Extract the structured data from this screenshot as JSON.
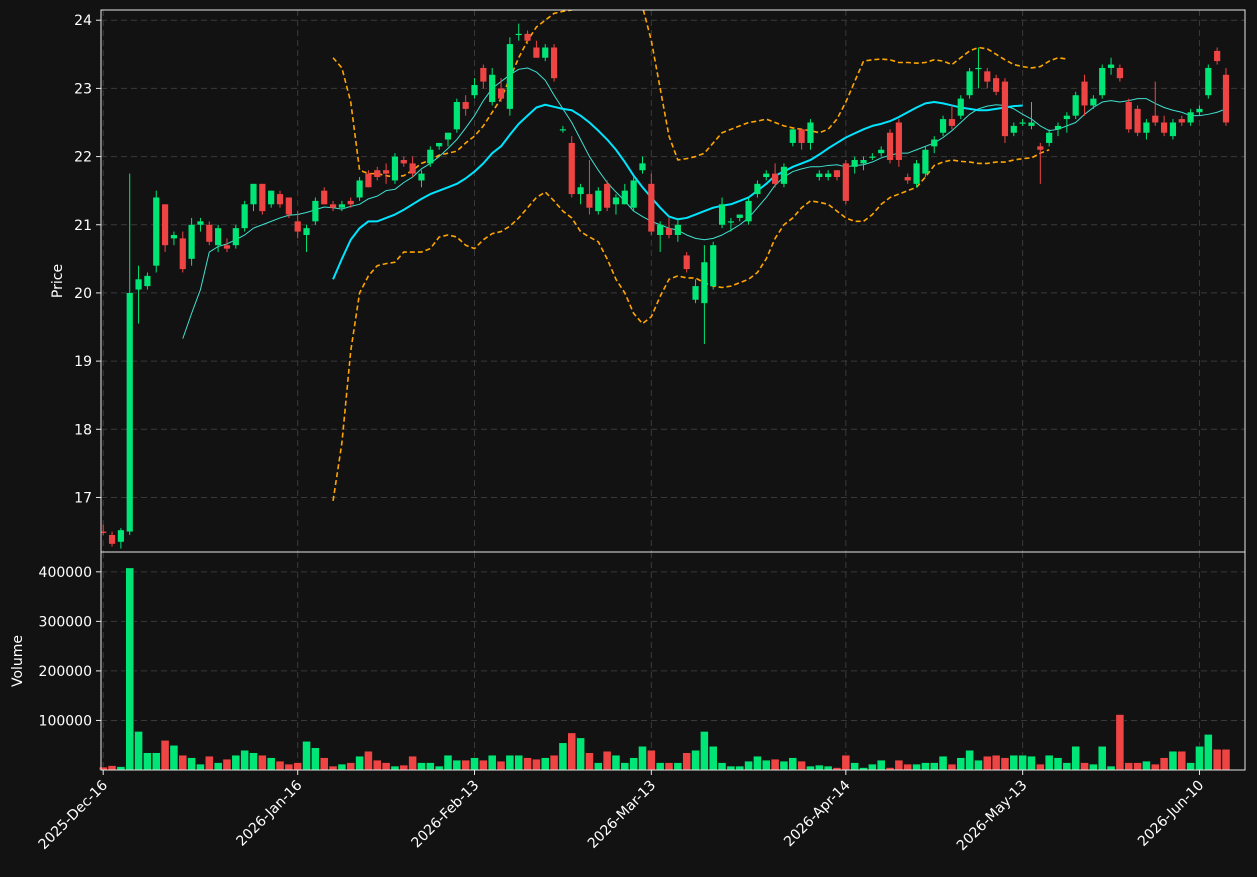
{
  "chart_data": {
    "type": "candlestick",
    "title": "",
    "colors": {
      "background": "#121212",
      "up": "#00e676",
      "down": "#ef4444",
      "ma_fast": "#40e0d0",
      "ma_slow": "#00e5ff",
      "bands": "#ffa500",
      "grid": "#3a3a3a",
      "axis": "#e6e6e6",
      "text": "#ffffff"
    },
    "price_panel": {
      "ylabel": "Price",
      "ylim": [
        16.2,
        24.15
      ],
      "yticks": [
        17,
        18,
        19,
        20,
        21,
        22,
        23,
        24
      ]
    },
    "volume_panel": {
      "ylabel": "Volume",
      "ylim": [
        0,
        440000
      ],
      "yticks": [
        100000,
        200000,
        300000,
        400000
      ]
    },
    "x_axis": {
      "tick_labels": [
        "2025-Dec-16",
        "2026-Jan-16",
        "2026-Feb-13",
        "2026-Mar-13",
        "2026-Apr-14",
        "2026-May-13",
        "2026-Jun-10"
      ],
      "tick_index": [
        0,
        22,
        42,
        62,
        84,
        104,
        124
      ],
      "num_sessions": 130
    },
    "candles": [
      [
        16.5,
        16.6,
        16.45,
        16.48,
        6000
      ],
      [
        16.45,
        16.5,
        16.28,
        16.32,
        9000
      ],
      [
        16.35,
        16.55,
        16.25,
        16.52,
        7000
      ],
      [
        16.5,
        21.75,
        16.45,
        20.0,
        408000
      ],
      [
        20.05,
        20.4,
        19.55,
        20.2,
        78000
      ],
      [
        20.1,
        20.3,
        20.05,
        20.25,
        35000
      ],
      [
        20.4,
        21.5,
        20.3,
        21.4,
        35000
      ],
      [
        21.3,
        21.3,
        20.6,
        20.7,
        60000
      ],
      [
        20.8,
        20.9,
        20.7,
        20.85,
        50000
      ],
      [
        20.8,
        20.9,
        20.3,
        20.35,
        30000
      ],
      [
        20.5,
        21.1,
        20.4,
        21.0,
        25000
      ],
      [
        21.0,
        21.1,
        20.9,
        21.05,
        12000
      ],
      [
        21.0,
        21.05,
        20.7,
        20.75,
        28000
      ],
      [
        20.7,
        21.0,
        20.6,
        20.95,
        15000
      ],
      [
        20.7,
        20.8,
        20.6,
        20.65,
        22000
      ],
      [
        20.7,
        21.0,
        20.65,
        20.95,
        30000
      ],
      [
        20.95,
        21.35,
        20.9,
        21.3,
        40000
      ],
      [
        21.3,
        21.6,
        21.2,
        21.6,
        35000
      ],
      [
        21.6,
        21.6,
        21.15,
        21.2,
        30000
      ],
      [
        21.3,
        21.5,
        21.25,
        21.5,
        25000
      ],
      [
        21.45,
        21.5,
        21.25,
        21.3,
        18000
      ],
      [
        21.4,
        21.4,
        21.1,
        21.15,
        12000
      ],
      [
        21.05,
        21.2,
        20.8,
        20.9,
        15000
      ],
      [
        20.85,
        21.0,
        20.6,
        20.95,
        58000
      ],
      [
        21.05,
        21.4,
        21.0,
        21.35,
        45000
      ],
      [
        21.5,
        21.55,
        21.3,
        21.3,
        25000
      ],
      [
        21.3,
        21.35,
        21.2,
        21.25,
        8000
      ],
      [
        21.25,
        21.35,
        21.2,
        21.3,
        12000
      ],
      [
        21.35,
        21.4,
        21.25,
        21.3,
        15000
      ],
      [
        21.4,
        21.7,
        21.35,
        21.65,
        28000
      ],
      [
        21.75,
        21.8,
        21.55,
        21.55,
        38000
      ],
      [
        21.8,
        21.85,
        21.65,
        21.7,
        20000
      ],
      [
        21.8,
        21.9,
        21.6,
        21.75,
        15000
      ],
      [
        21.65,
        22.05,
        21.6,
        22.0,
        8000
      ],
      [
        21.95,
        22.0,
        21.85,
        21.9,
        10000
      ],
      [
        21.9,
        22.0,
        21.7,
        21.75,
        28000
      ],
      [
        21.65,
        21.8,
        21.55,
        21.75,
        15000
      ],
      [
        21.9,
        22.15,
        21.85,
        22.1,
        15000
      ],
      [
        22.15,
        22.2,
        22.1,
        22.2,
        8000
      ],
      [
        22.25,
        22.35,
        22.15,
        22.35,
        30000
      ],
      [
        22.4,
        22.85,
        22.35,
        22.8,
        20000
      ],
      [
        22.8,
        22.9,
        22.6,
        22.7,
        20000
      ],
      [
        22.9,
        23.15,
        22.85,
        23.05,
        25000
      ],
      [
        23.3,
        23.35,
        23.0,
        23.1,
        20000
      ],
      [
        22.8,
        23.3,
        22.75,
        23.2,
        30000
      ],
      [
        23.0,
        23.15,
        22.8,
        22.85,
        18000
      ],
      [
        22.7,
        23.75,
        22.6,
        23.65,
        30000
      ],
      [
        23.8,
        23.95,
        23.7,
        23.8,
        30000
      ],
      [
        23.8,
        23.85,
        23.65,
        23.7,
        25000
      ],
      [
        23.6,
        23.7,
        23.45,
        23.45,
        22000
      ],
      [
        23.45,
        23.65,
        23.4,
        23.6,
        25000
      ],
      [
        23.6,
        23.65,
        23.1,
        23.15,
        30000
      ],
      [
        22.4,
        22.45,
        22.35,
        22.4,
        55000
      ],
      [
        22.2,
        22.3,
        21.4,
        21.45,
        75000
      ],
      [
        21.45,
        21.6,
        21.3,
        21.55,
        65000
      ],
      [
        21.45,
        21.95,
        21.15,
        21.25,
        35000
      ],
      [
        21.2,
        21.55,
        21.15,
        21.5,
        15000
      ],
      [
        21.6,
        21.65,
        21.2,
        21.25,
        38000
      ],
      [
        21.3,
        21.45,
        21.15,
        21.4,
        30000
      ],
      [
        21.3,
        21.6,
        21.3,
        21.5,
        15000
      ],
      [
        21.25,
        21.7,
        21.2,
        21.65,
        25000
      ],
      [
        21.8,
        22.0,
        21.75,
        21.9,
        48000
      ],
      [
        21.6,
        21.75,
        20.85,
        20.9,
        40000
      ],
      [
        20.85,
        21.05,
        20.6,
        21.0,
        15000
      ],
      [
        20.95,
        21.1,
        20.8,
        20.85,
        15000
      ],
      [
        20.85,
        21.1,
        20.75,
        21.0,
        15000
      ],
      [
        20.55,
        20.6,
        20.3,
        20.35,
        35000
      ],
      [
        19.9,
        20.2,
        19.85,
        20.1,
        40000
      ],
      [
        19.85,
        20.7,
        19.25,
        20.45,
        78000
      ],
      [
        20.1,
        20.75,
        20.05,
        20.7,
        48000
      ],
      [
        21.0,
        21.4,
        20.95,
        21.3,
        15000
      ],
      [
        21.05,
        21.1,
        20.9,
        21.05,
        8000
      ],
      [
        21.1,
        21.15,
        21.05,
        21.15,
        8000
      ],
      [
        21.05,
        21.4,
        21.0,
        21.35,
        18000
      ],
      [
        21.45,
        21.65,
        21.4,
        21.6,
        28000
      ],
      [
        21.7,
        21.8,
        21.65,
        21.75,
        20000
      ],
      [
        21.75,
        21.9,
        21.55,
        21.6,
        22000
      ],
      [
        21.6,
        21.9,
        21.55,
        21.85,
        18000
      ],
      [
        22.2,
        22.4,
        22.15,
        22.4,
        25000
      ],
      [
        22.4,
        22.4,
        22.1,
        22.2,
        18000
      ],
      [
        22.2,
        22.55,
        22.1,
        22.5,
        8000
      ],
      [
        21.7,
        21.8,
        21.65,
        21.75,
        10000
      ],
      [
        21.7,
        21.8,
        21.65,
        21.75,
        8000
      ],
      [
        21.8,
        21.8,
        21.65,
        21.7,
        5000
      ],
      [
        21.9,
        21.95,
        21.3,
        21.35,
        30000
      ],
      [
        21.85,
        22.0,
        21.75,
        21.95,
        15000
      ],
      [
        21.9,
        22.0,
        21.8,
        21.95,
        5000
      ],
      [
        22.0,
        22.05,
        21.95,
        22.0,
        12000
      ],
      [
        22.05,
        22.15,
        22.0,
        22.1,
        20000
      ],
      [
        22.35,
        22.4,
        21.9,
        21.95,
        5000
      ],
      [
        22.5,
        22.55,
        21.85,
        21.95,
        20000
      ],
      [
        21.7,
        21.75,
        21.6,
        21.65,
        12000
      ],
      [
        21.6,
        21.95,
        21.55,
        21.9,
        12000
      ],
      [
        21.75,
        22.15,
        21.7,
        22.1,
        15000
      ],
      [
        22.15,
        22.3,
        22.05,
        22.25,
        15000
      ],
      [
        22.35,
        22.6,
        22.3,
        22.55,
        28000
      ],
      [
        22.55,
        22.75,
        22.4,
        22.45,
        12000
      ],
      [
        22.6,
        22.9,
        22.55,
        22.85,
        25000
      ],
      [
        22.9,
        23.3,
        22.85,
        23.25,
        40000
      ],
      [
        23.3,
        23.6,
        23.0,
        23.3,
        20000
      ],
      [
        23.25,
        23.3,
        23.0,
        23.1,
        28000
      ],
      [
        23.15,
        23.2,
        22.9,
        22.95,
        30000
      ],
      [
        23.1,
        23.15,
        22.2,
        22.3,
        25000
      ],
      [
        22.35,
        22.5,
        22.3,
        22.45,
        30000
      ],
      [
        22.5,
        22.55,
        22.45,
        22.5,
        30000
      ],
      [
        22.45,
        22.8,
        22.4,
        22.5,
        28000
      ],
      [
        22.15,
        22.2,
        21.6,
        22.1,
        12000
      ],
      [
        22.2,
        22.4,
        22.15,
        22.35,
        30000
      ],
      [
        22.4,
        22.5,
        22.3,
        22.45,
        25000
      ],
      [
        22.55,
        22.65,
        22.35,
        22.6,
        15000
      ],
      [
        22.6,
        22.95,
        22.55,
        22.9,
        48000
      ],
      [
        23.1,
        23.2,
        22.6,
        22.75,
        15000
      ],
      [
        22.75,
        22.9,
        22.7,
        22.85,
        12000
      ],
      [
        22.9,
        23.35,
        22.85,
        23.3,
        48000
      ],
      [
        23.3,
        23.45,
        23.2,
        23.35,
        8000
      ],
      [
        23.3,
        23.35,
        23.1,
        23.15,
        112000
      ],
      [
        22.8,
        22.85,
        22.35,
        22.4,
        15000
      ],
      [
        22.7,
        22.75,
        22.3,
        22.35,
        15000
      ],
      [
        22.35,
        22.55,
        22.25,
        22.5,
        18000
      ],
      [
        22.6,
        23.1,
        22.45,
        22.5,
        12000
      ],
      [
        22.5,
        22.6,
        22.3,
        22.35,
        25000
      ],
      [
        22.3,
        22.55,
        22.25,
        22.5,
        38000
      ],
      [
        22.55,
        22.6,
        22.45,
        22.5,
        38000
      ],
      [
        22.5,
        22.7,
        22.45,
        22.65,
        15000
      ],
      [
        22.65,
        22.75,
        22.6,
        22.7,
        48000
      ],
      [
        22.9,
        23.35,
        22.85,
        23.3,
        72000
      ],
      [
        23.55,
        23.6,
        23.35,
        23.4,
        42000
      ],
      [
        23.2,
        23.3,
        22.45,
        22.5,
        42000
      ]
    ],
    "series": [
      {
        "name": "",
        "style": "thin-line",
        "color": "#40e0d0",
        "start_index": 9,
        "values": [
          19.33,
          19.7,
          20.05,
          20.6,
          20.68,
          20.72,
          20.78,
          20.85,
          20.95,
          21.0,
          21.05,
          21.1,
          21.14,
          21.15,
          21.18,
          21.22,
          21.26,
          21.25,
          21.23,
          21.27,
          21.3,
          21.38,
          21.42,
          21.5,
          21.52,
          21.62,
          21.7,
          21.82,
          21.9,
          22.0,
          22.12,
          22.25,
          22.42,
          22.6,
          22.82,
          23.0,
          23.1,
          23.2,
          23.28,
          23.3,
          23.24,
          23.12,
          22.9,
          22.7,
          22.5,
          22.25,
          22.0,
          21.8,
          21.62,
          21.48,
          21.35,
          21.2,
          21.12,
          21.05,
          21.0,
          20.95,
          20.92,
          20.85,
          20.8,
          20.78,
          20.8,
          20.85,
          20.92,
          21.0,
          21.1,
          21.25,
          21.4,
          21.58,
          21.7,
          21.78,
          21.82,
          21.85,
          21.85,
          21.87,
          21.88,
          21.85,
          21.87,
          21.88,
          21.92,
          21.98,
          22.02,
          22.05,
          22.05,
          22.1,
          22.15,
          22.2,
          22.28,
          22.38,
          22.5,
          22.62,
          22.7,
          22.74,
          22.76,
          22.75,
          22.7,
          22.62,
          22.55,
          22.45,
          22.38,
          22.4,
          22.45,
          22.5,
          22.62,
          22.72,
          22.8,
          22.82,
          22.8,
          22.82,
          22.85,
          22.85,
          22.78,
          22.72,
          22.68,
          22.65,
          22.6,
          22.6,
          22.62,
          22.65,
          22.7
        ]
      },
      {
        "name": "",
        "style": "thick-line",
        "color": "#00e5ff",
        "start_index": 26,
        "values": [
          20.2,
          20.5,
          20.78,
          20.95,
          21.05,
          21.05,
          21.1,
          21.15,
          21.22,
          21.3,
          21.38,
          21.45,
          21.5,
          21.55,
          21.6,
          21.68,
          21.78,
          21.9,
          22.05,
          22.15,
          22.32,
          22.48,
          22.6,
          22.72,
          22.76,
          22.73,
          22.7,
          22.68,
          22.6,
          22.5,
          22.38,
          22.25,
          22.1,
          21.92,
          21.72,
          21.55,
          21.4,
          21.25,
          21.12,
          21.08,
          21.1,
          21.15,
          21.2,
          21.25,
          21.28,
          21.3,
          21.35,
          21.4,
          21.5,
          21.6,
          21.72,
          21.78,
          21.85,
          21.9,
          21.95,
          22.03,
          22.12,
          22.2,
          22.28,
          22.34,
          22.4,
          22.45,
          22.48,
          22.52,
          22.58,
          22.65,
          22.72,
          22.78,
          22.8,
          22.78,
          22.75,
          22.72,
          22.7,
          22.68,
          22.68,
          22.7,
          22.72,
          22.74,
          22.75
        ]
      },
      {
        "name": "",
        "style": "dashed",
        "color": "#ffa500",
        "start_index": 26,
        "values": [
          23.45,
          23.3,
          22.8,
          21.8,
          21.75,
          21.75,
          21.72,
          21.7,
          21.72,
          21.8,
          21.9,
          21.95,
          22.02,
          22.05,
          22.08,
          22.2,
          22.3,
          22.45,
          22.65,
          22.85,
          23.15,
          23.45,
          23.7,
          23.9,
          24.0,
          24.1,
          24.13,
          24.15,
          24.3,
          24.5,
          24.7,
          24.9,
          25.0,
          24.95,
          24.6,
          24.2,
          23.7,
          23.0,
          22.3,
          21.95,
          21.97,
          22.0,
          22.05,
          22.2,
          22.35,
          22.4,
          22.45,
          22.5,
          22.52,
          22.55,
          22.5,
          22.45,
          22.42,
          22.4,
          22.38,
          22.35,
          22.4,
          22.55,
          22.8,
          23.1,
          23.4,
          23.42,
          23.43,
          23.42,
          23.38,
          23.38,
          23.37,
          23.38,
          23.42,
          23.4,
          23.35,
          23.45,
          23.55,
          23.6,
          23.58,
          23.5,
          23.42,
          23.35,
          23.32,
          23.3,
          23.32,
          23.4,
          23.45,
          23.43
        ]
      },
      {
        "name": "",
        "style": "dashed",
        "color": "#ffa500",
        "start_index": 26,
        "values": [
          16.95,
          17.8,
          19.15,
          20.0,
          20.25,
          20.4,
          20.43,
          20.45,
          20.6,
          20.6,
          20.6,
          20.65,
          20.82,
          20.85,
          20.82,
          20.7,
          20.65,
          20.78,
          20.87,
          20.9,
          20.98,
          21.1,
          21.25,
          21.4,
          21.48,
          21.35,
          21.2,
          21.1,
          20.9,
          20.82,
          20.75,
          20.5,
          20.2,
          20.0,
          19.7,
          19.55,
          19.65,
          19.95,
          20.2,
          20.25,
          20.22,
          20.22,
          20.15,
          20.1,
          20.08,
          20.1,
          20.15,
          20.2,
          20.3,
          20.5,
          20.8,
          21.0,
          21.1,
          21.25,
          21.35,
          21.33,
          21.3,
          21.2,
          21.1,
          21.05,
          21.05,
          21.15,
          21.3,
          21.4,
          21.45,
          21.5,
          21.55,
          21.7,
          21.87,
          21.92,
          21.95,
          21.93,
          21.92,
          21.9,
          21.9,
          21.92,
          21.92,
          21.95,
          21.97,
          21.98,
          22.05,
          22.1
        ]
      }
    ]
  }
}
